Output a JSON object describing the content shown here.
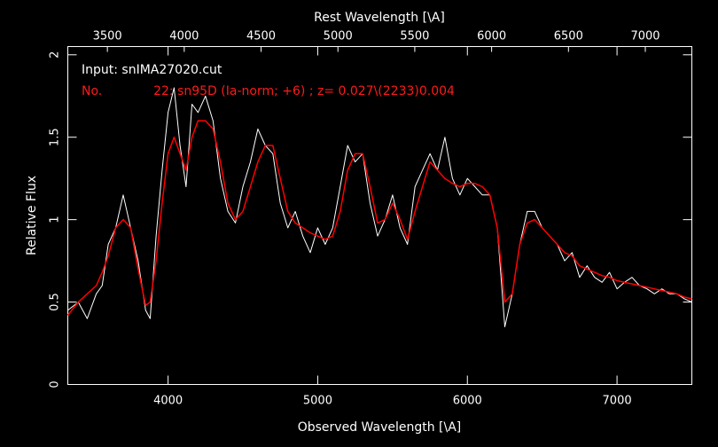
{
  "chart_data": {
    "type": "line",
    "xlabel": "Observed Wavelength [\\A]",
    "x2label": "Rest Wavelength [\\A]",
    "ylabel": "Relative Flux",
    "xlim": [
      3330,
      7500
    ],
    "ylim": [
      0,
      2.05
    ],
    "x_ticks": [
      4000,
      5000,
      6000,
      7000
    ],
    "x2_ticks": [
      3500,
      4000,
      4500,
      5000,
      5500,
      6000,
      6500,
      7000
    ],
    "x2_redshift": 0.027,
    "y_ticks": [
      0,
      0.5,
      1,
      1.5,
      2
    ],
    "annotations": [
      {
        "text": "Input: snIMA27020.cut",
        "color": "#ffffff"
      },
      {
        "text": "No.             22: sn95D (Ia-norm; +6) ; z= 0.027\\(2233)0.004",
        "color": "#ff1a1a"
      }
    ],
    "series": [
      {
        "color": "#ffffff",
        "x": [
          3330,
          3400,
          3460,
          3520,
          3560,
          3600,
          3650,
          3700,
          3750,
          3800,
          3850,
          3880,
          3920,
          3960,
          4000,
          4040,
          4080,
          4120,
          4160,
          4200,
          4250,
          4300,
          4350,
          4400,
          4450,
          4500,
          4550,
          4600,
          4650,
          4700,
          4750,
          4800,
          4850,
          4900,
          4950,
          5000,
          5050,
          5100,
          5150,
          5200,
          5250,
          5300,
          5350,
          5400,
          5450,
          5500,
          5550,
          5600,
          5650,
          5700,
          5750,
          5800,
          5850,
          5900,
          5950,
          6000,
          6050,
          6100,
          6150,
          6200,
          6250,
          6300,
          6350,
          6400,
          6450,
          6500,
          6550,
          6600,
          6650,
          6700,
          6750,
          6800,
          6850,
          6900,
          6950,
          7000,
          7050,
          7100,
          7150,
          7200,
          7250,
          7300,
          7350,
          7400,
          7450,
          7500
        ],
        "y": [
          0.45,
          0.5,
          0.4,
          0.55,
          0.6,
          0.85,
          0.95,
          1.15,
          0.95,
          0.75,
          0.45,
          0.4,
          0.9,
          1.3,
          1.65,
          1.8,
          1.45,
          1.2,
          1.7,
          1.65,
          1.75,
          1.6,
          1.25,
          1.05,
          0.98,
          1.2,
          1.35,
          1.55,
          1.45,
          1.4,
          1.1,
          0.95,
          1.05,
          0.9,
          0.8,
          0.95,
          0.85,
          0.95,
          1.2,
          1.45,
          1.35,
          1.4,
          1.1,
          0.9,
          1.0,
          1.15,
          0.95,
          0.85,
          1.2,
          1.3,
          1.4,
          1.3,
          1.5,
          1.25,
          1.15,
          1.25,
          1.2,
          1.15,
          1.15,
          0.95,
          0.35,
          0.55,
          0.85,
          1.05,
          1.05,
          0.95,
          0.9,
          0.85,
          0.75,
          0.8,
          0.65,
          0.72,
          0.65,
          0.62,
          0.68,
          0.58,
          0.62,
          0.65,
          0.6,
          0.58,
          0.55,
          0.58,
          0.55,
          0.55,
          0.52,
          0.5
        ]
      },
      {
        "color": "#ff0000",
        "x": [
          3330,
          3400,
          3460,
          3520,
          3560,
          3600,
          3650,
          3700,
          3750,
          3800,
          3850,
          3880,
          3920,
          3960,
          4000,
          4040,
          4080,
          4120,
          4160,
          4200,
          4250,
          4300,
          4350,
          4400,
          4450,
          4500,
          4550,
          4600,
          4650,
          4700,
          4750,
          4800,
          4850,
          4900,
          4950,
          5000,
          5050,
          5100,
          5150,
          5200,
          5250,
          5300,
          5350,
          5400,
          5450,
          5500,
          5550,
          5600,
          5650,
          5700,
          5750,
          5800,
          5850,
          5900,
          5950,
          6000,
          6050,
          6100,
          6150,
          6200,
          6250,
          6300,
          6350,
          6400,
          6450,
          6500,
          6550,
          6600,
          6650,
          6700,
          6750,
          6800,
          6850,
          6900,
          6950,
          7000,
          7050,
          7100,
          7150,
          7200,
          7250,
          7300,
          7350,
          7400,
          7450,
          7500
        ],
        "y": [
          0.42,
          0.5,
          0.55,
          0.6,
          0.68,
          0.78,
          0.95,
          1.0,
          0.95,
          0.7,
          0.48,
          0.5,
          0.75,
          1.1,
          1.4,
          1.5,
          1.4,
          1.3,
          1.5,
          1.6,
          1.6,
          1.55,
          1.35,
          1.1,
          1.0,
          1.05,
          1.2,
          1.35,
          1.45,
          1.45,
          1.25,
          1.05,
          0.98,
          0.95,
          0.92,
          0.9,
          0.88,
          0.9,
          1.05,
          1.3,
          1.4,
          1.4,
          1.2,
          0.98,
          1.0,
          1.1,
          1.0,
          0.88,
          1.05,
          1.2,
          1.35,
          1.3,
          1.25,
          1.22,
          1.2,
          1.22,
          1.22,
          1.2,
          1.15,
          0.95,
          0.5,
          0.55,
          0.85,
          0.98,
          1.0,
          0.95,
          0.9,
          0.85,
          0.8,
          0.78,
          0.72,
          0.7,
          0.68,
          0.66,
          0.65,
          0.63,
          0.62,
          0.61,
          0.6,
          0.59,
          0.58,
          0.57,
          0.56,
          0.55,
          0.53,
          0.52
        ]
      }
    ]
  }
}
